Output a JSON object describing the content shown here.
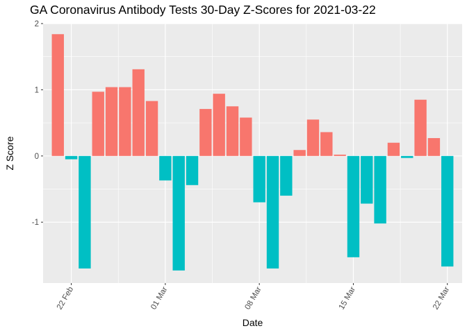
{
  "chart_data": {
    "type": "bar",
    "title": "GA Coronavirus Antibody Tests 30-Day Z-Scores for 2021-03-22",
    "xlabel": "Date",
    "ylabel": "Z Score",
    "x_start": "2021-02-21",
    "x_ticks": [
      {
        "date": "2021-02-22",
        "label": "22 Feb"
      },
      {
        "date": "2021-03-01",
        "label": "01 Mar"
      },
      {
        "date": "2021-03-08",
        "label": "08 Mar"
      },
      {
        "date": "2021-03-15",
        "label": "15 Mar"
      },
      {
        "date": "2021-03-22",
        "label": "22 Mar"
      }
    ],
    "y_ticks": [
      2,
      1,
      0,
      -1
    ],
    "ylim": [
      -1.92,
      2.0
    ],
    "grid": true,
    "background": "#ebebeb",
    "positive_color": "#f8766d",
    "negative_color": "#00bfc4",
    "x": [
      "2021-02-21",
      "2021-02-22",
      "2021-02-23",
      "2021-02-24",
      "2021-02-25",
      "2021-02-26",
      "2021-02-27",
      "2021-02-28",
      "2021-03-01",
      "2021-03-02",
      "2021-03-03",
      "2021-03-04",
      "2021-03-05",
      "2021-03-06",
      "2021-03-07",
      "2021-03-08",
      "2021-03-09",
      "2021-03-10",
      "2021-03-11",
      "2021-03-12",
      "2021-03-13",
      "2021-03-14",
      "2021-03-15",
      "2021-03-16",
      "2021-03-17",
      "2021-03-18",
      "2021-03-19",
      "2021-03-20",
      "2021-03-21",
      "2021-03-22"
    ],
    "values": [
      1.84,
      -0.05,
      -1.7,
      0.97,
      1.04,
      1.04,
      1.31,
      0.83,
      -0.37,
      -1.73,
      -0.44,
      0.71,
      0.94,
      0.75,
      0.58,
      -0.7,
      -1.7,
      -0.6,
      0.09,
      0.55,
      0.36,
      0.02,
      -1.53,
      -0.72,
      -1.02,
      0.2,
      -0.03,
      0.85,
      0.27,
      -1.67
    ]
  }
}
